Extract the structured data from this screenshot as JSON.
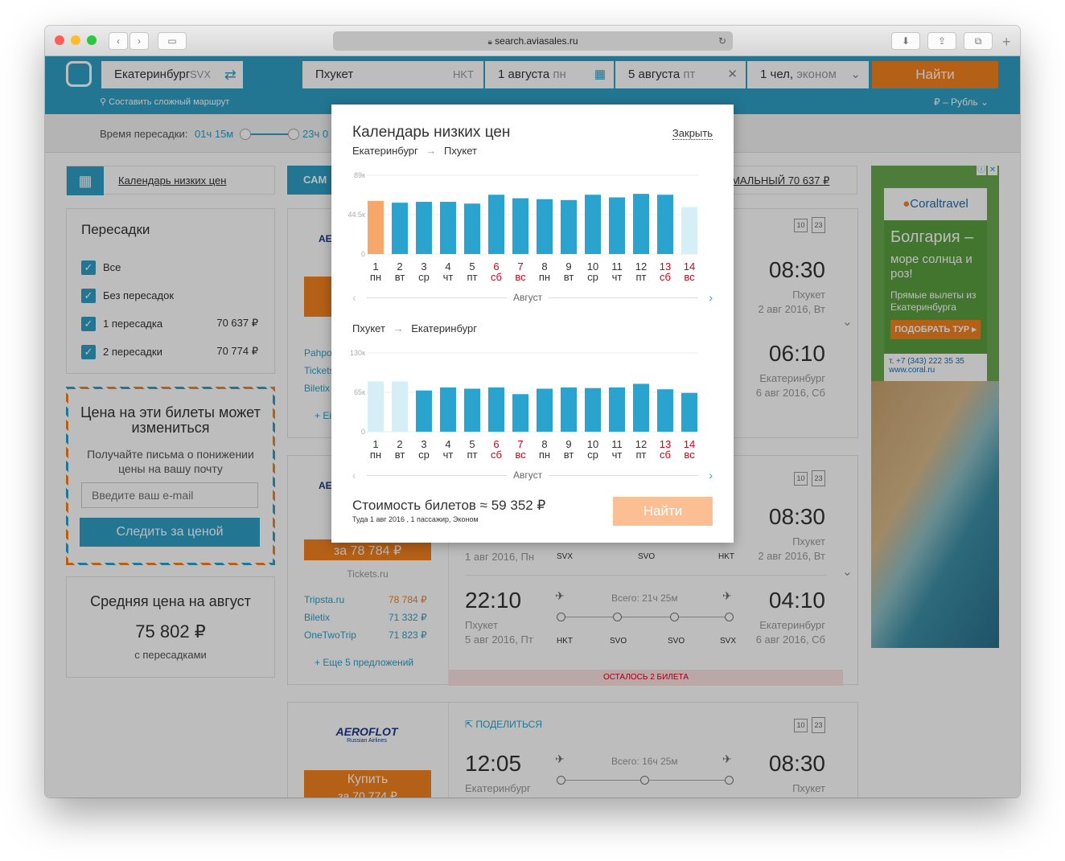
{
  "browser": {
    "url": "search.aviasales.ru"
  },
  "search": {
    "from": "Екатеринбург",
    "from_code": "SVX",
    "to": "Пхукет",
    "to_code": "HKT",
    "date_out": "1 августа",
    "date_out_day": "пн",
    "date_back": "5 августа",
    "date_back_day": "пт",
    "passengers": "1 чел,",
    "class": "эконом",
    "find": "Найти",
    "complex_route": "Составить сложный маршрут",
    "currency": "₽ – Рубль"
  },
  "filters": {
    "transfer_time_label": "Время пересадки:",
    "transfer_min": "01ч 15м",
    "transfer_max": "23ч 0"
  },
  "sidebar": {
    "calendar_link": "Календарь низких цен",
    "transfers_title": "Пересадки",
    "transfers": [
      {
        "label": "Все",
        "price": ""
      },
      {
        "label": "Без пересадок",
        "price": ""
      },
      {
        "label": "1 пересадка",
        "price": "70 637 ₽"
      },
      {
        "label": "2 пересадки",
        "price": "70 774 ₽"
      }
    ],
    "alert_title": "Цена на эти билеты может измениться",
    "alert_text": "Получайте письма о понижении цены на вашу почту",
    "email_placeholder": "Введите ваш e-mail",
    "watch_button": "Следить за ценой",
    "avg_title": "Средняя цена на август",
    "avg_price": "75 802 ₽",
    "avg_note": "с пересадками"
  },
  "tabs": {
    "cheapest": "САМ",
    "optimal": "МАЛЬНЫЙ 70 637 ₽"
  },
  "results": [
    {
      "sellers": [
        "Pahpo",
        "Tickets",
        "Biletix"
      ],
      "more": "+ Еі",
      "out_arr_time": "08:30",
      "out_arr_city": "Пхукет",
      "out_arr_date": "2 авг 2016, Вт",
      "ret_arr_time": "06:10",
      "ret_arr_city": "Екатеринбург",
      "ret_arr_date": "6 авг 2016, Сб"
    },
    {
      "buy": "за 78 784 ₽",
      "buy_via": "Tickets.ru",
      "sellers": [
        {
          "name": "Tripsta.ru",
          "price": "78 784 ₽"
        },
        {
          "name": "Biletix",
          "price": "71 332 ₽"
        },
        {
          "name": "OneTwoTrip",
          "price": "71 823 ₽"
        }
      ],
      "more": "+ Еще 5 предложений",
      "out_dep_date": "1 авг 2016, Пн",
      "out_stops": [
        "SVX",
        "SVO",
        "HKT"
      ],
      "out_arr_time": "08:30",
      "out_arr_city": "Пхукет",
      "out_arr_date": "2 авг 2016, Вт",
      "ret_dep_time": "22:10",
      "ret_dep_city": "Пхукет",
      "ret_dep_date": "5 авг 2016, Пт",
      "ret_total": "Всего: 21ч 25м",
      "ret_stops": [
        "HKT",
        "SVO",
        "SVO",
        "SVX"
      ],
      "ret_arr_time": "04:10",
      "ret_arr_city": "Екатеринбург",
      "ret_arr_date": "6 авг 2016, Сб",
      "left": "ОСТАЛОСЬ 2 БИЛЕТА"
    },
    {
      "airline": "AEROFLOT",
      "airline_sub": "Russian Airlines",
      "share": "ПОДЕЛИТЬСЯ",
      "buy_label": "Купить",
      "buy_price": "за 70 774 ₽",
      "dep_time": "12:05",
      "dep_city": "Екатеринбург",
      "total": "Всего: 16ч 25м",
      "arr_time": "08:30",
      "arr_city": "Пхукет"
    }
  ],
  "baggage": {
    "a": "10",
    "b": "23"
  },
  "ad": {
    "brand": "Coraltravel",
    "headline": "Болгария –",
    "sub": "море солнца и роз!",
    "flights": "Прямые вылеты из Екатеринбурга",
    "cta": "ПОДОБРАТЬ ТУР ▸",
    "phone": "т. +7 (343) 222 35 35",
    "site": "www.coral.ru"
  },
  "modal": {
    "title": "Календарь низких цен",
    "close": "Закрыть",
    "route_out_from": "Екатеринбург",
    "route_out_to": "Пхукет",
    "route_back_from": "Пхукет",
    "route_back_to": "Екатеринбург",
    "month": "Август",
    "cost_label": "Стоимость билетов ≈ 59 352 ₽",
    "cost_note": "Туда 1 авг 2016 , 1 пассажир, Эконом",
    "find": "Найти"
  },
  "chart_data": [
    {
      "type": "bar",
      "categories": [
        "1",
        "2",
        "3",
        "4",
        "5",
        "6",
        "7",
        "8",
        "9",
        "10",
        "11",
        "12",
        "13",
        "14"
      ],
      "weekdays": [
        "пн",
        "вт",
        "ср",
        "чт",
        "пт",
        "сб",
        "вс",
        "пн",
        "вт",
        "ср",
        "чт",
        "пт",
        "сб",
        "вс"
      ],
      "values": [
        60000,
        58000,
        59000,
        59000,
        57000,
        67000,
        63000,
        62000,
        61000,
        67000,
        64000,
        68000,
        67000,
        53000
      ],
      "ylim": [
        0,
        89000
      ],
      "yticks": [
        "89к",
        "44.5к",
        "0"
      ],
      "highlight": [
        0
      ],
      "faded": [
        13
      ]
    },
    {
      "type": "bar",
      "categories": [
        "1",
        "2",
        "3",
        "4",
        "5",
        "6",
        "7",
        "8",
        "9",
        "10",
        "11",
        "12",
        "13",
        "14"
      ],
      "weekdays": [
        "пн",
        "вт",
        "ср",
        "чт",
        "пт",
        "сб",
        "вс",
        "пн",
        "вт",
        "ср",
        "чт",
        "пт",
        "сб",
        "вс"
      ],
      "values": [
        83000,
        83000,
        68000,
        73000,
        71000,
        73000,
        62000,
        71000,
        73000,
        72000,
        73000,
        79000,
        70000,
        64000
      ],
      "ylim": [
        0,
        130000
      ],
      "yticks": [
        "130к",
        "65к",
        "0"
      ],
      "highlight": [],
      "faded": [
        0,
        1
      ]
    }
  ],
  "colors": {
    "accent": "#2e9fc6",
    "orange": "#f58220",
    "weekend": "#d0021b",
    "bar": "#2aa3cf",
    "bar_selected": "#f5a86a",
    "bar_faded": "#d6eef6"
  }
}
